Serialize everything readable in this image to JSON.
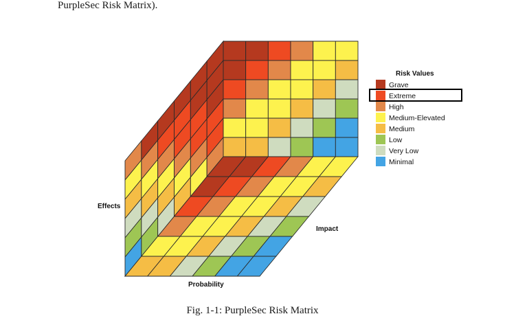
{
  "header_text": "PurpleSec Risk Matrix).",
  "caption": "Fig. 1-1: PurpleSec Risk Matrix",
  "axes": {
    "effects": "Effects",
    "impact": "Impact",
    "probability": "Probability"
  },
  "legend": {
    "title": "Risk Values",
    "highlighted": "Extreme",
    "items": [
      {
        "label": "Grave",
        "color": "#b5391f"
      },
      {
        "label": "Extreme",
        "color": "#ee4a22"
      },
      {
        "label": "High",
        "color": "#e2884a"
      },
      {
        "label": "Medium-Elevated",
        "color": "#fdf24e"
      },
      {
        "label": "Medium",
        "color": "#f5bd45"
      },
      {
        "label": "Low",
        "color": "#9ec654"
      },
      {
        "label": "Very Low",
        "color": "#cfdcbf"
      },
      {
        "label": "Minimal",
        "color": "#43a4e4"
      }
    ]
  },
  "faces": {
    "front": [
      [
        "grave",
        "grave",
        "extreme",
        "high",
        "medium-elevated",
        "medium-elevated"
      ],
      [
        "grave",
        "extreme",
        "high",
        "medium-elevated",
        "medium-elevated",
        "medium"
      ],
      [
        "extreme",
        "high",
        "medium-elevated",
        "medium-elevated",
        "medium",
        "very-low"
      ],
      [
        "high",
        "medium-elevated",
        "medium-elevated",
        "medium",
        "very-low",
        "low"
      ],
      [
        "medium-elevated",
        "medium-elevated",
        "medium",
        "very-low",
        "low",
        "minimal"
      ],
      [
        "medium",
        "medium",
        "very-low",
        "low",
        "minimal",
        "minimal"
      ]
    ],
    "left": [
      [
        "high",
        "grave",
        "grave",
        "grave",
        "grave",
        "grave"
      ],
      [
        "medium-elevated",
        "high",
        "extreme",
        "extreme",
        "grave",
        "grave"
      ],
      [
        "medium",
        "medium-elevated",
        "high",
        "extreme",
        "extreme",
        "grave"
      ],
      [
        "very-low",
        "medium",
        "medium-elevated",
        "high",
        "extreme",
        "extreme"
      ],
      [
        "low",
        "very-low",
        "medium",
        "medium-elevated",
        "high",
        "extreme"
      ],
      [
        "minimal",
        "low",
        "very-low",
        "medium",
        "medium-elevated",
        "high"
      ]
    ],
    "bottom": [
      [
        "grave",
        "grave",
        "extreme",
        "high",
        "medium-elevated",
        "medium-elevated"
      ],
      [
        "grave",
        "extreme",
        "high",
        "medium-elevated",
        "medium-elevated",
        "medium"
      ],
      [
        "extreme",
        "high",
        "medium-elevated",
        "medium-elevated",
        "medium",
        "very-low"
      ],
      [
        "high",
        "medium-elevated",
        "medium-elevated",
        "medium",
        "very-low",
        "low"
      ],
      [
        "medium-elevated",
        "medium-elevated",
        "medium",
        "very-low",
        "low",
        "minimal"
      ],
      [
        "medium",
        "medium",
        "very-low",
        "low",
        "minimal",
        "minimal"
      ]
    ]
  }
}
